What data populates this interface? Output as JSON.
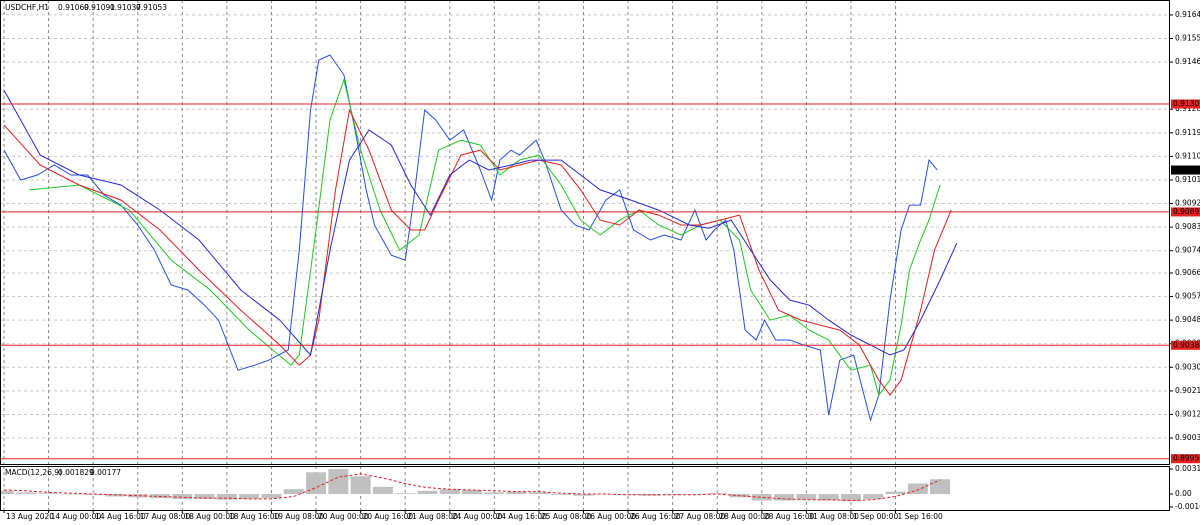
{
  "chart_data": {
    "type": "line",
    "symbol": "USDCHF,H1",
    "ohlc": [
      0.91069,
      0.91091,
      0.91037,
      0.91053
    ],
    "levels": [
      0.91305,
      0.90893,
      0.90384,
      0.89951
    ],
    "level_color": "#e82020",
    "grid": true,
    "xlim": [
      -1.44,
      418.52
    ],
    "xticks": [
      {
        "value": 0,
        "label": "13 Aug 2020"
      },
      {
        "value": 16,
        "label": "14 Aug 00:00"
      },
      {
        "value": 32,
        "label": "14 Aug 16:00"
      },
      {
        "value": 48,
        "label": "17 Aug 08:00"
      },
      {
        "value": 64,
        "label": "18 Aug 00:00"
      },
      {
        "value": 80,
        "label": "18 Aug 16:00"
      },
      {
        "value": 96,
        "label": "19 Aug 08:00"
      },
      {
        "value": 112,
        "label": "20 Aug 00:00"
      },
      {
        "value": 128,
        "label": "20 Aug 16:00"
      },
      {
        "value": 144,
        "label": "21 Aug 08:00"
      },
      {
        "value": 160,
        "label": "24 Aug 00:00"
      },
      {
        "value": 176,
        "label": "24 Aug 16:00"
      },
      {
        "value": 192,
        "label": "25 Aug 08:00"
      },
      {
        "value": 208,
        "label": "26 Aug 00:00"
      },
      {
        "value": 224,
        "label": "26 Aug 16:00"
      },
      {
        "value": 240,
        "label": "27 Aug 08:00"
      },
      {
        "value": 256,
        "label": "28 Aug 00:00"
      },
      {
        "value": 272,
        "label": "28 Aug 16:00"
      },
      {
        "value": 288,
        "label": "31 Aug 08:00"
      },
      {
        "value": 304,
        "label": "1 Sep 00:00"
      },
      {
        "value": 320,
        "label": "1 Sep 16:00"
      }
    ],
    "ylim": [
      0.89927,
      0.91702
    ],
    "yticks": [
      0.91645,
      0.91555,
      0.91465,
      0.91285,
      0.91195,
      0.91105,
      0.91015,
      0.90925,
      0.90835,
      0.90745,
      {
        "value": 0.9066,
        "label": "0.90660"
      },
      {
        "value": 0.9057,
        "label": "0.90570"
      },
      {
        "value": 0.9048,
        "label": "0.90480"
      },
      {
        "value": 0.9039,
        "label": "0.90390"
      },
      {
        "value": 0.903,
        "label": "0.90300"
      },
      {
        "value": 0.9021,
        "label": "0.90210"
      },
      {
        "value": 0.9012,
        "label": "0.90120"
      },
      {
        "value": 0.9003,
        "label": "0.90030"
      }
    ],
    "series": [
      {
        "color": "#2450e0",
        "x": [
          0,
          6,
          12,
          18,
          24,
          30,
          36,
          42,
          48,
          54,
          60,
          66,
          72,
          77,
          84,
          90,
          95,
          102,
          106,
          110,
          113,
          117,
          122,
          126,
          130,
          133,
          139,
          144,
          147,
          151,
          155,
          160,
          165,
          171,
          175,
          178,
          182,
          185,
          191,
          194,
          200,
          205,
          210,
          216,
          221,
          226,
          232,
          237,
          243,
          248,
          252,
          255,
          259,
          262,
          266,
          270,
          273,
          277,
          282,
          287,
          293,
          296,
          300,
          305,
          311,
          314,
          318,
          322,
          325,
          329,
          332,
          335
        ],
        "values": [
          0.91129,
          0.91015,
          0.91034,
          0.91072,
          0.91034,
          0.91034,
          0.90957,
          0.90919,
          0.90843,
          0.90747,
          0.90614,
          0.90595,
          0.90537,
          0.9048,
          0.90289,
          0.90308,
          0.90327,
          0.90366,
          0.90747,
          0.91282,
          0.91473,
          0.91492,
          0.91416,
          0.91206,
          0.90977,
          0.90843,
          0.90728,
          0.90709,
          0.90938,
          0.91282,
          0.91244,
          0.91167,
          0.91206,
          0.91053,
          0.90938,
          0.91091,
          0.91129,
          0.9111,
          0.91167,
          0.91091,
          0.909,
          0.90843,
          0.90824,
          0.90938,
          0.90977,
          0.90824,
          0.90786,
          0.90805,
          0.90786,
          0.909,
          0.90786,
          0.90824,
          0.90862,
          0.90747,
          0.90442,
          0.90404,
          0.9048,
          0.90404,
          0.90404,
          0.90385,
          0.90366,
          0.90118,
          0.90327,
          0.90347,
          0.90098,
          0.90194,
          0.90557,
          0.90824,
          0.90919,
          0.90919,
          0.91091,
          0.91053
        ]
      },
      {
        "color": "#20c820",
        "x": [
          9,
          27,
          45,
          60,
          74,
          88,
          103,
          106,
          112,
          117,
          122,
          128,
          135,
          142,
          149,
          156,
          164,
          171,
          178,
          185,
          192,
          200,
          207,
          214,
          221,
          228,
          235,
          243,
          250,
          257,
          264,
          268,
          275,
          282,
          289,
          296,
          304,
          311,
          314,
          318,
          322,
          325,
          329,
          332,
          336
        ],
        "values": [
          0.90977,
          0.90996,
          0.909,
          0.90709,
          0.90595,
          0.90442,
          0.90308,
          0.90347,
          0.90824,
          0.91244,
          0.91397,
          0.91129,
          0.909,
          0.90747,
          0.90805,
          0.91129,
          0.91167,
          0.91148,
          0.91034,
          0.91091,
          0.9111,
          0.90996,
          0.90862,
          0.90805,
          0.90862,
          0.909,
          0.90843,
          0.90805,
          0.90843,
          0.90862,
          0.90786,
          0.90595,
          0.9048,
          0.90499,
          0.90442,
          0.90404,
          0.90289,
          0.90308,
          0.90194,
          0.90251,
          0.90461,
          0.90671,
          0.90786,
          0.90862,
          0.90996
        ]
      },
      {
        "color": "#e02020",
        "x": [
          0,
          13,
          27,
          42,
          56,
          70,
          85,
          99,
          106,
          110,
          113,
          119,
          124,
          131,
          139,
          146,
          151,
          156,
          164,
          171,
          178,
          185,
          192,
          200,
          207,
          214,
          221,
          228,
          235,
          243,
          250,
          257,
          264,
          271,
          278,
          286,
          293,
          300,
          307,
          314,
          318,
          322,
          329,
          334,
          340
        ],
        "values": [
          0.91225,
          0.91072,
          0.90996,
          0.90938,
          0.90824,
          0.90671,
          0.90518,
          0.90385,
          0.90308,
          0.90347,
          0.9048,
          0.90977,
          0.91282,
          0.91129,
          0.909,
          0.90824,
          0.90824,
          0.90938,
          0.9111,
          0.91129,
          0.91053,
          0.91072,
          0.91091,
          0.91072,
          0.90977,
          0.90862,
          0.90843,
          0.909,
          0.90881,
          0.90843,
          0.90843,
          0.90862,
          0.90881,
          0.90671,
          0.90518,
          0.9048,
          0.90461,
          0.90442,
          0.90385,
          0.90251,
          0.90194,
          0.90251,
          0.90518,
          0.90747,
          0.909
        ]
      },
      {
        "color": "#2828d0",
        "x": [
          0,
          13,
          27,
          42,
          56,
          70,
          85,
          99,
          110,
          117,
          124,
          131,
          139,
          146,
          153,
          160,
          167,
          174,
          182,
          189,
          200,
          207,
          214,
          225,
          235,
          246,
          253,
          261,
          268,
          275,
          282,
          289,
          296,
          304,
          311,
          318,
          323,
          329,
          336,
          342
        ],
        "values": [
          0.91358,
          0.9111,
          0.91034,
          0.90996,
          0.909,
          0.90786,
          0.90595,
          0.9048,
          0.90347,
          0.90747,
          0.91091,
          0.91206,
          0.91148,
          0.90996,
          0.90881,
          0.91034,
          0.91091,
          0.91053,
          0.91072,
          0.91091,
          0.91091,
          0.91034,
          0.90977,
          0.90938,
          0.909,
          0.90843,
          0.90831,
          0.90862,
          0.90747,
          0.90633,
          0.90557,
          0.90537,
          0.9048,
          0.90423,
          0.90385,
          0.90347,
          0.90366,
          0.9048,
          0.90633,
          0.90774
        ]
      }
    ],
    "macd": {
      "label": "MACD(12,26,9)",
      "histogram_color": "#c0c0c0",
      "signal_color": "#e02020",
      "ylim": [
        -0.00198,
        0.00348
      ],
      "yticks": [
        0.003111,
        {
          "value": 0,
          "label": "0.00"
        },
        -0.001604
      ],
      "x": [
        0,
        8,
        16,
        24,
        32,
        40,
        48,
        56,
        64,
        72,
        80,
        88,
        96,
        104,
        112,
        120,
        128,
        136,
        144,
        152,
        160,
        168,
        176,
        184,
        192,
        200,
        208,
        216,
        224,
        232,
        240,
        248,
        256,
        264,
        272,
        280,
        288,
        296,
        304,
        312,
        320,
        328,
        336
      ],
      "histogram": [
        0.0004,
        0.0002,
        0.0001,
        0,
        -0.0001,
        -0.0003,
        -0.0004,
        -0.0005,
        -0.0006,
        -0.0006,
        -0.0007,
        -0.0006,
        -0.0005,
        0.0006,
        0.0027,
        0.0031,
        0.0022,
        0.0009,
        0.0001,
        0.0004,
        0.0006,
        0.0005,
        0.0002,
        0.0003,
        0.0002,
        -0.0001,
        -0.0002,
        0,
        -0.0001,
        -0.0002,
        -0.0001,
        0,
        0.0001,
        -0.0004,
        -0.0008,
        -0.0008,
        -0.0007,
        -0.0008,
        -0.0009,
        -0.0006,
        0.0003,
        0.0013,
        0.001829
      ],
      "signal": [
        0.0005,
        0.0004,
        0.0002,
        0.0001,
        0,
        -0.0001,
        -0.0002,
        -0.0003,
        -0.0004,
        -0.0005,
        -0.0005,
        -0.0006,
        -0.0006,
        -0.0003,
        0.0008,
        0.0021,
        0.0025,
        0.002,
        0.0013,
        0.0008,
        0.0006,
        0.0005,
        0.0004,
        0.0003,
        0.0003,
        0.0001,
        0,
        0,
        -0.0001,
        -0.0001,
        -0.0001,
        -0.0001,
        0,
        -0.0002,
        -0.0004,
        -0.0006,
        -0.0007,
        -0.0007,
        -0.0008,
        -0.0007,
        -0.0003,
        0.0005,
        0.00177
      ]
    }
  }
}
